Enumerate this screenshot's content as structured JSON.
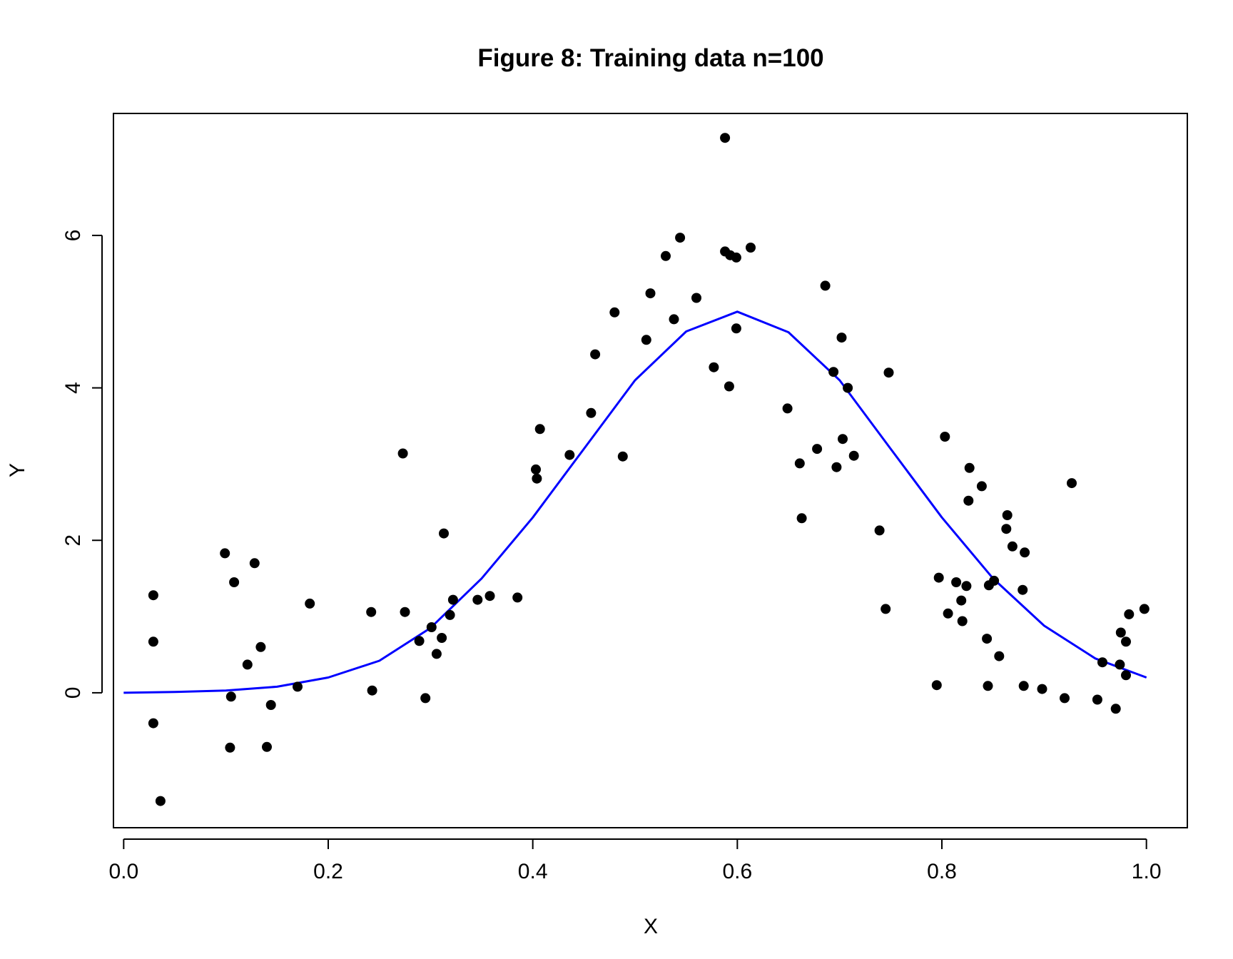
{
  "chart_data": {
    "type": "scatter",
    "title": "Figure 8: Training data n=100",
    "xlabel": "X",
    "ylabel": "Y",
    "xlim": [
      -0.01,
      1.04
    ],
    "ylim": [
      -1.77,
      7.6
    ],
    "x_ticks": [
      {
        "value": 0.0,
        "label": "0.0"
      },
      {
        "value": 0.2,
        "label": "0.2"
      },
      {
        "value": 0.4,
        "label": "0.4"
      },
      {
        "value": 0.6,
        "label": "0.6"
      },
      {
        "value": 0.8,
        "label": "0.8"
      },
      {
        "value": 1.0,
        "label": "1.0"
      }
    ],
    "y_ticks": [
      {
        "value": 0,
        "label": "0"
      },
      {
        "value": 2,
        "label": "2"
      },
      {
        "value": 4,
        "label": "4"
      },
      {
        "value": 6,
        "label": "6"
      }
    ],
    "grid": false,
    "legend": "none",
    "series": [
      {
        "kind": "points",
        "color": "#000000",
        "points": [
          [
            0.029,
            1.28
          ],
          [
            0.029,
            0.67
          ],
          [
            0.029,
            -0.4
          ],
          [
            0.036,
            -1.42
          ],
          [
            0.099,
            1.83
          ],
          [
            0.104,
            -0.72
          ],
          [
            0.105,
            -0.05
          ],
          [
            0.108,
            1.45
          ],
          [
            0.121,
            0.37
          ],
          [
            0.128,
            1.7
          ],
          [
            0.134,
            0.6
          ],
          [
            0.14,
            -0.71
          ],
          [
            0.144,
            -0.16
          ],
          [
            0.17,
            0.08
          ],
          [
            0.182,
            1.17
          ],
          [
            0.242,
            1.06
          ],
          [
            0.243,
            0.03
          ],
          [
            0.273,
            3.14
          ],
          [
            0.275,
            1.06
          ],
          [
            0.289,
            0.68
          ],
          [
            0.295,
            -0.07
          ],
          [
            0.301,
            0.86
          ],
          [
            0.306,
            0.51
          ],
          [
            0.311,
            0.72
          ],
          [
            0.313,
            2.09
          ],
          [
            0.319,
            1.02
          ],
          [
            0.322,
            1.22
          ],
          [
            0.346,
            1.22
          ],
          [
            0.358,
            1.27
          ],
          [
            0.385,
            1.25
          ],
          [
            0.403,
            2.93
          ],
          [
            0.404,
            2.81
          ],
          [
            0.407,
            3.46
          ],
          [
            0.436,
            3.12
          ],
          [
            0.457,
            3.67
          ],
          [
            0.461,
            4.44
          ],
          [
            0.48,
            4.99
          ],
          [
            0.488,
            3.1
          ],
          [
            0.511,
            4.63
          ],
          [
            0.515,
            5.24
          ],
          [
            0.53,
            5.73
          ],
          [
            0.538,
            4.9
          ],
          [
            0.544,
            5.97
          ],
          [
            0.56,
            5.18
          ],
          [
            0.577,
            4.27
          ],
          [
            0.588,
            7.28
          ],
          [
            0.588,
            5.79
          ],
          [
            0.592,
            4.02
          ],
          [
            0.593,
            5.74
          ],
          [
            0.599,
            5.71
          ],
          [
            0.599,
            4.78
          ],
          [
            0.613,
            5.84
          ],
          [
            0.649,
            3.73
          ],
          [
            0.661,
            3.01
          ],
          [
            0.663,
            2.29
          ],
          [
            0.678,
            3.2
          ],
          [
            0.686,
            5.34
          ],
          [
            0.694,
            4.21
          ],
          [
            0.697,
            2.96
          ],
          [
            0.702,
            4.66
          ],
          [
            0.703,
            3.33
          ],
          [
            0.708,
            4.0
          ],
          [
            0.714,
            3.11
          ],
          [
            0.739,
            2.13
          ],
          [
            0.745,
            1.1
          ],
          [
            0.748,
            4.2
          ],
          [
            0.795,
            0.1
          ],
          [
            0.797,
            1.51
          ],
          [
            0.803,
            3.36
          ],
          [
            0.806,
            1.04
          ],
          [
            0.814,
            1.45
          ],
          [
            0.819,
            1.21
          ],
          [
            0.82,
            0.94
          ],
          [
            0.824,
            1.4
          ],
          [
            0.826,
            2.52
          ],
          [
            0.827,
            2.95
          ],
          [
            0.839,
            2.71
          ],
          [
            0.844,
            0.71
          ],
          [
            0.845,
            0.09
          ],
          [
            0.846,
            1.41
          ],
          [
            0.851,
            1.47
          ],
          [
            0.856,
            0.48
          ],
          [
            0.863,
            2.15
          ],
          [
            0.864,
            2.33
          ],
          [
            0.869,
            1.92
          ],
          [
            0.879,
            1.35
          ],
          [
            0.88,
            0.09
          ],
          [
            0.881,
            1.84
          ],
          [
            0.898,
            0.05
          ],
          [
            0.92,
            -0.07
          ],
          [
            0.927,
            2.75
          ],
          [
            0.952,
            -0.09
          ],
          [
            0.957,
            0.4
          ],
          [
            0.97,
            -0.21
          ],
          [
            0.974,
            0.37
          ],
          [
            0.975,
            0.79
          ],
          [
            0.98,
            0.67
          ],
          [
            0.98,
            0.23
          ],
          [
            0.983,
            1.03
          ],
          [
            0.998,
            1.1
          ]
        ]
      },
      {
        "kind": "line",
        "color": "#0000ff",
        "points": [
          [
            0.0,
            0.0
          ],
          [
            0.05,
            0.01
          ],
          [
            0.1,
            0.03
          ],
          [
            0.15,
            0.08
          ],
          [
            0.2,
            0.2
          ],
          [
            0.25,
            0.42
          ],
          [
            0.3,
            0.85
          ],
          [
            0.35,
            1.5
          ],
          [
            0.4,
            2.3
          ],
          [
            0.45,
            3.2
          ],
          [
            0.5,
            4.1
          ],
          [
            0.55,
            4.74
          ],
          [
            0.6,
            5.0
          ],
          [
            0.65,
            4.73
          ],
          [
            0.7,
            4.1
          ],
          [
            0.75,
            3.2
          ],
          [
            0.8,
            2.3
          ],
          [
            0.85,
            1.5
          ],
          [
            0.9,
            0.88
          ],
          [
            0.95,
            0.45
          ],
          [
            1.0,
            0.2
          ]
        ]
      }
    ]
  }
}
